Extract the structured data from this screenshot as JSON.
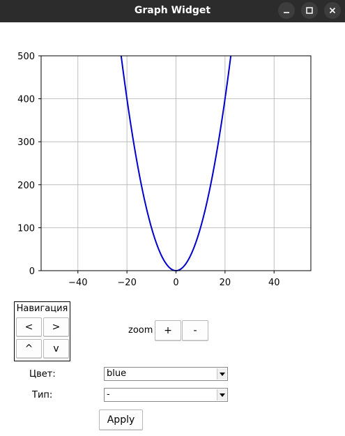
{
  "window": {
    "title": "Graph Widget",
    "controls": [
      "minimize-icon",
      "maximize-icon",
      "close-icon"
    ]
  },
  "chart_data": {
    "type": "line",
    "title": "",
    "xlabel": "",
    "ylabel": "",
    "xlim": [
      -55,
      55
    ],
    "ylim": [
      0,
      500
    ],
    "x_ticks": [
      -40,
      -20,
      0,
      20,
      40
    ],
    "x_tick_labels": [
      "−40",
      "−20",
      "0",
      "20",
      "40"
    ],
    "y_ticks": [
      0,
      100,
      200,
      300,
      400,
      500
    ],
    "y_tick_labels": [
      "0",
      "100",
      "200",
      "300",
      "400",
      "500"
    ],
    "grid": true,
    "series": [
      {
        "function": "x^2",
        "x_range": [
          -22.36,
          22.36
        ],
        "color": "#0000cc"
      }
    ]
  },
  "navigation": {
    "title": "Навигация",
    "left": "<",
    "right": ">",
    "up": "^",
    "down": "v"
  },
  "zoom": {
    "label": "zoom",
    "plus": "+",
    "minus": "-"
  },
  "color_field": {
    "label": "Цвет:",
    "value": "blue"
  },
  "type_field": {
    "label": "Тип:",
    "value": "-"
  },
  "apply_label": "Apply"
}
